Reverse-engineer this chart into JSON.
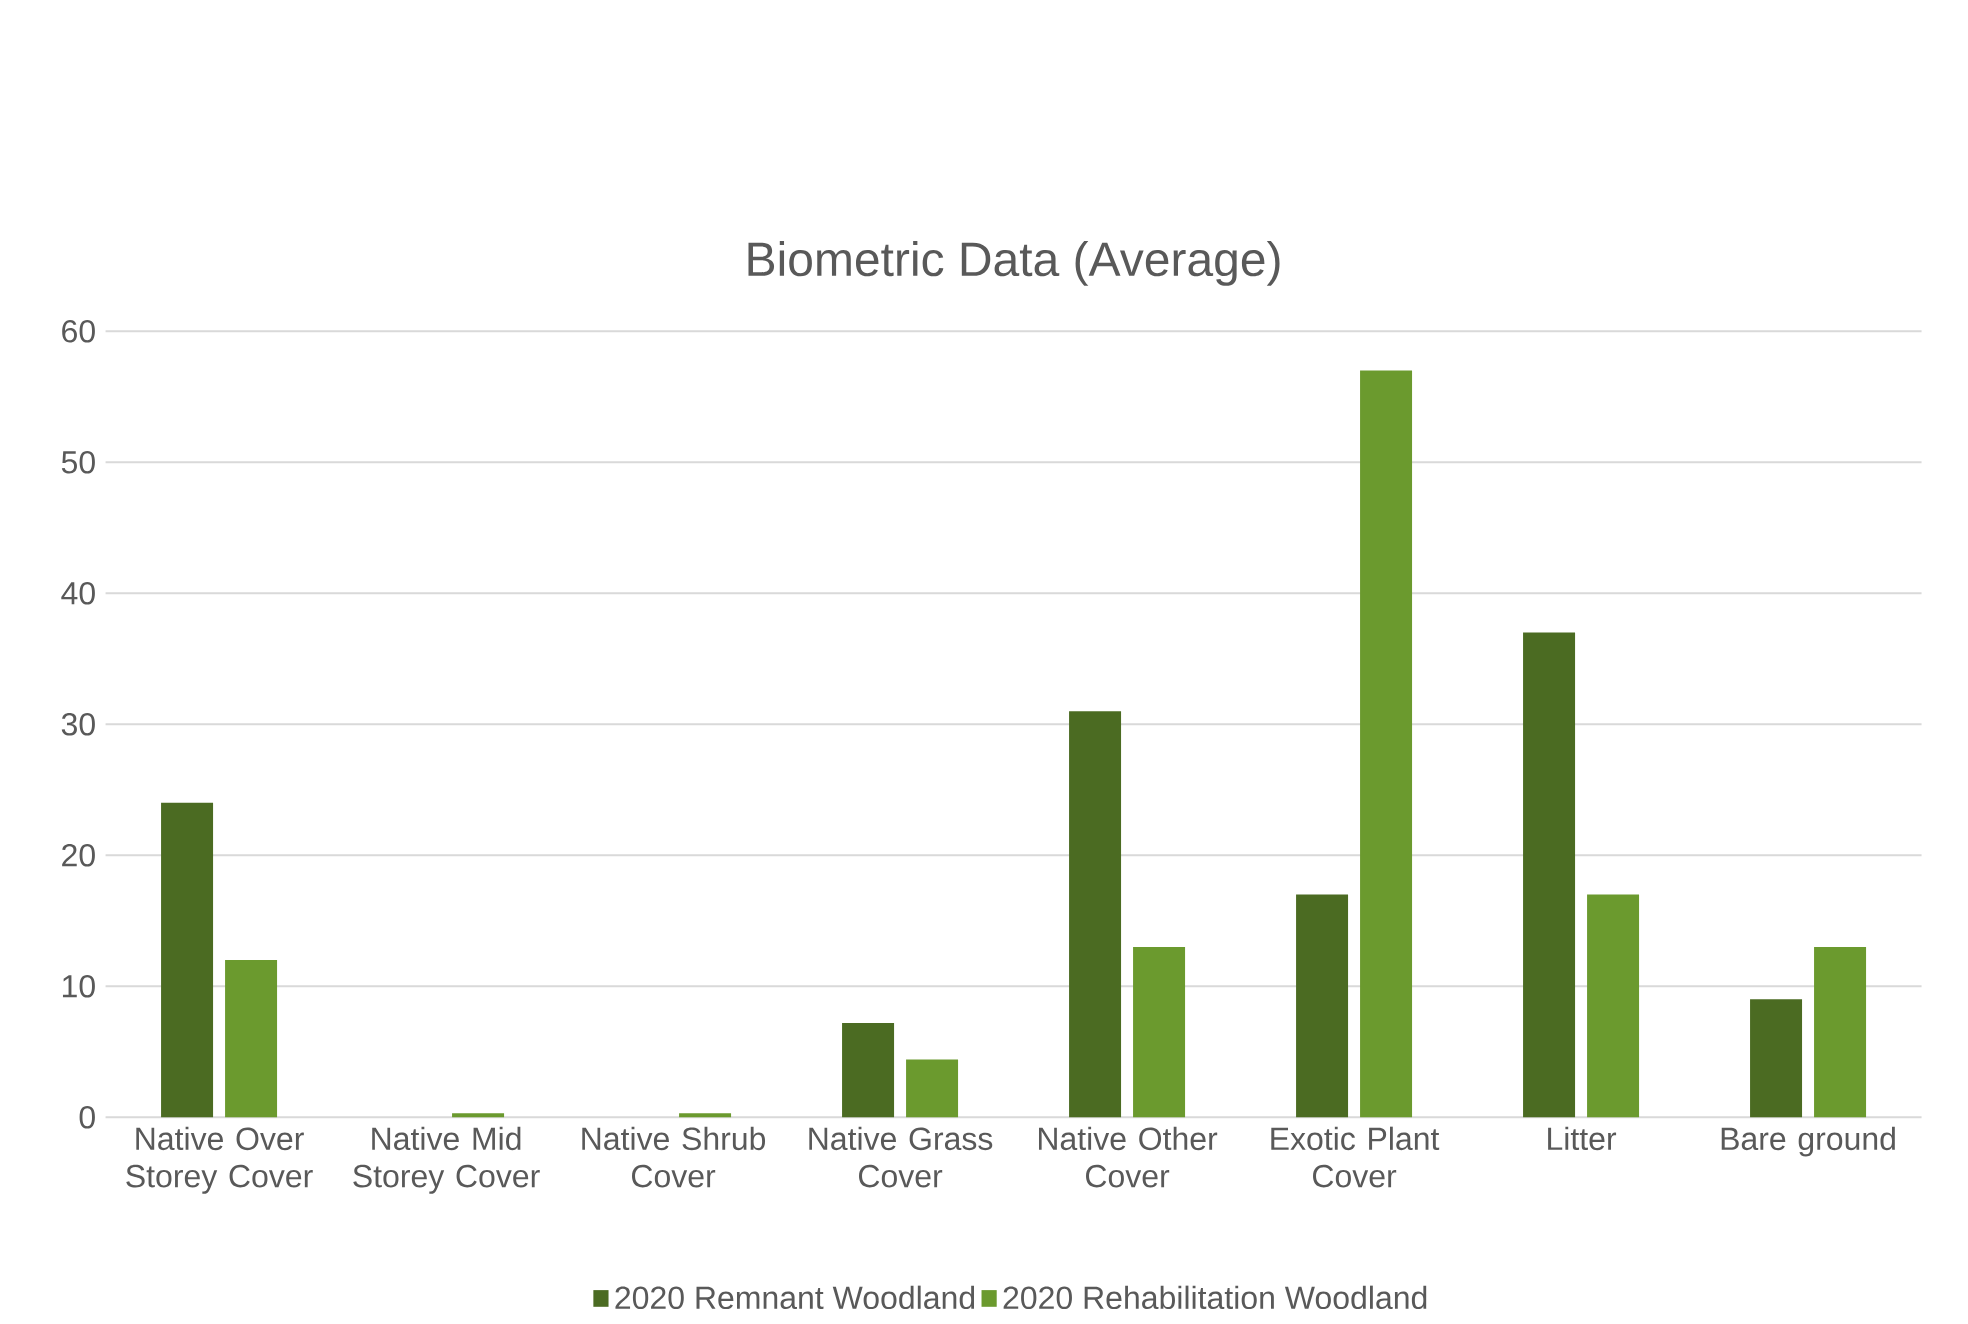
{
  "chart_data": {
    "type": "bar",
    "title": "Biometric Data (Average)",
    "categories": [
      "Native Over Storey Cover",
      "Native Mid Storey Cover",
      "Native Shrub Cover",
      "Native Grass Cover",
      "Native Other Cover",
      "Exotic Plant Cover",
      "Litter",
      "Bare ground"
    ],
    "series": [
      {
        "name": "2020 Remnant Woodland",
        "color": "#4b6b22",
        "values": [
          24,
          0,
          0,
          7.2,
          31,
          17,
          37,
          9
        ]
      },
      {
        "name": "2020 Rehabilitation Woodland",
        "color": "#6b9a2e",
        "values": [
          12,
          0.3,
          0.3,
          4.4,
          13,
          57,
          17,
          13
        ]
      }
    ],
    "ylim": [
      0,
      60
    ],
    "yticks": [
      0,
      10,
      20,
      30,
      40,
      50,
      60
    ],
    "grid": "y",
    "legend": "bottom"
  }
}
